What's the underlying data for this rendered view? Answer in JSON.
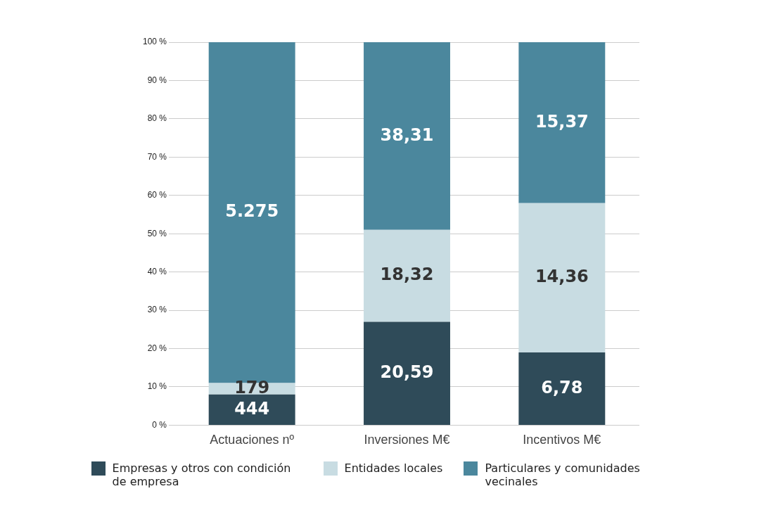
{
  "chart_data": {
    "type": "bar",
    "stacked": true,
    "categories": [
      "Actuaciones nº",
      "Inversiones M€",
      "Incentivos M€"
    ],
    "series": [
      {
        "name": "Empresas y otros con condición de empresa",
        "color": "#2f4b59",
        "values": [
          8,
          27,
          19
        ]
      },
      {
        "name": "Entidades locales",
        "color": "#c8dce2",
        "values": [
          3,
          24,
          39
        ]
      },
      {
        "name": "Particulares y comunidades vecinales",
        "color": "#4b879d",
        "values": [
          89,
          49,
          42
        ]
      }
    ],
    "annotations": [
      "444",
      "179",
      "5.275",
      "20,59",
      "18,32",
      "38,31",
      "6,78",
      "14,36",
      "15,37"
    ],
    "ylim": [
      0,
      100
    ],
    "yticks": [
      {
        "value": 0,
        "label": "0 %"
      },
      {
        "value": 10,
        "label": "10 %"
      },
      {
        "value": 20,
        "label": "20 %"
      },
      {
        "value": 30,
        "label": "30 %"
      },
      {
        "value": 40,
        "label": "40 %"
      },
      {
        "value": 50,
        "label": "50 %"
      },
      {
        "value": 60,
        "label": "60 %"
      },
      {
        "value": 70,
        "label": "70 %"
      },
      {
        "value": 80,
        "label": "80 %"
      },
      {
        "value": 90,
        "label": "90 %"
      },
      {
        "value": 100,
        "label": "100 %"
      }
    ],
    "grid": "y",
    "legend": "bottom"
  }
}
